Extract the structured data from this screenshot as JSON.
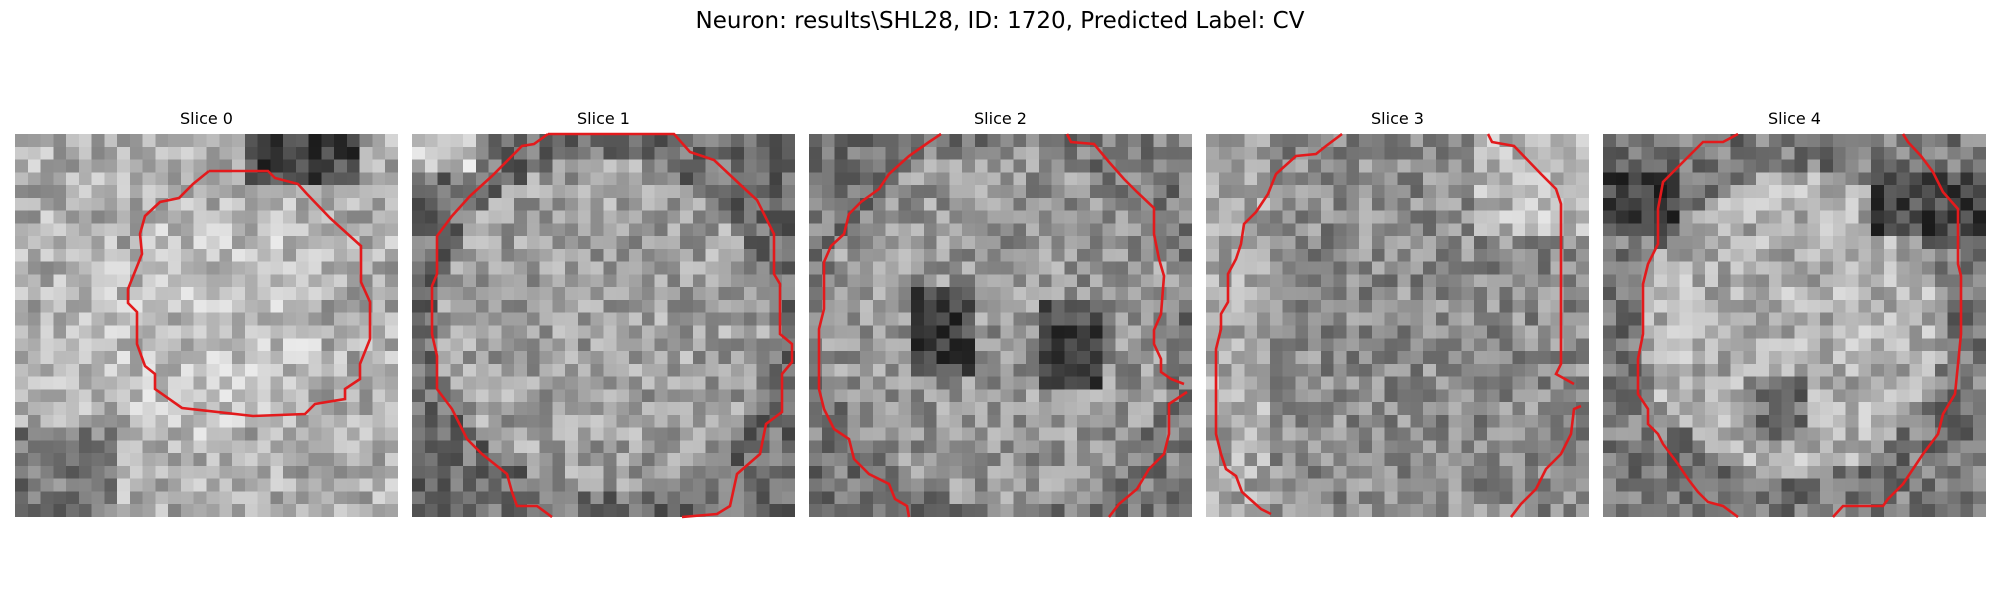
{
  "figure_title": "Neuron: results\\SHL28, ID: 1720, Predicted Label: CV",
  "contour_color": "#e31a1c",
  "panels": [
    {
      "title": "Slice 0"
    },
    {
      "title": "Slice 1"
    },
    {
      "title": "Slice 2"
    },
    {
      "title": "Slice 3"
    },
    {
      "title": "Slice 4"
    }
  ]
}
